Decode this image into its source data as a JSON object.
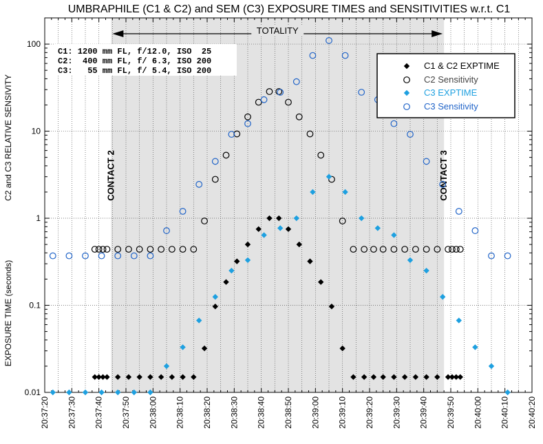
{
  "chart_data": {
    "type": "scatter",
    "title": "UMBRAPHILE (C1 & C2) and SEM (C3) EXPOSURE TIMES and SENSITIVITIES w.r.t. C1",
    "ylabel_upper": "C2  and C3 RELATIVE SENSIVITY",
    "ylabel_lower": "EXPOSURE TIME (seconds)",
    "y_scale": "log",
    "ylim": [
      0.01,
      200
    ],
    "y_ticks": [
      {
        "value": 0.01,
        "label": "0.01"
      },
      {
        "value": 0.1,
        "label": "0.1"
      },
      {
        "value": 1,
        "label": "1"
      },
      {
        "value": 10,
        "label": "10"
      },
      {
        "value": 100,
        "label": "100"
      }
    ],
    "xlim_seconds": [
      0,
      180
    ],
    "x_ticks": [
      {
        "t": 0,
        "label": "20:37:20"
      },
      {
        "t": 10,
        "label": "20:37:30"
      },
      {
        "t": 20,
        "label": "20:37:40"
      },
      {
        "t": 30,
        "label": "20:37:50"
      },
      {
        "t": 40,
        "label": "20:38:00"
      },
      {
        "t": 50,
        "label": "20:38:10"
      },
      {
        "t": 60,
        "label": "20:38:20"
      },
      {
        "t": 70,
        "label": "20:38:30"
      },
      {
        "t": 80,
        "label": "20:38:40"
      },
      {
        "t": 90,
        "label": "20:38:50"
      },
      {
        "t": 100,
        "label": "20:39:00"
      },
      {
        "t": 110,
        "label": "20:39:10"
      },
      {
        "t": 120,
        "label": "20:39:20"
      },
      {
        "t": 130,
        "label": "20:39:30"
      },
      {
        "t": 140,
        "label": "20:39:40"
      },
      {
        "t": 150,
        "label": "20:39:50"
      },
      {
        "t": 160,
        "label": "20:40:00"
      },
      {
        "t": 170,
        "label": "20:40:10"
      },
      {
        "t": 180,
        "label": "20:40:20"
      }
    ],
    "grid": true,
    "totality": {
      "start": 24.5,
      "end": 147.5,
      "label": "TOTALITY"
    },
    "annotations": [
      {
        "text": "CONTACT 2",
        "t": 24.5
      },
      {
        "text": "CONTACT 3",
        "t": 147.5
      }
    ],
    "camera_info": [
      "C1: 1200 mm FL, f/12.0, ISO  25",
      "C2:  400 mm FL, f/ 6.3, ISO 200",
      "C3:   55 mm FL, f/ 5.4, ISO 200"
    ],
    "legend_position": "top-right",
    "series": [
      {
        "name": "C1 & C2 EXPTIME",
        "marker": "diamond-filled",
        "color": "#000000",
        "t": [
          18.5,
          20,
          21.5,
          23,
          27,
          31,
          35,
          39,
          43,
          47,
          51,
          55,
          59,
          63,
          67,
          71,
          75,
          79,
          83,
          86.5,
          90,
          94,
          98,
          102,
          106,
          110,
          114,
          118,
          121.5,
          125,
          129,
          133,
          137,
          141,
          145,
          149,
          150.5,
          152,
          153.5
        ],
        "values": [
          0.015,
          0.015,
          0.015,
          0.015,
          0.015,
          0.015,
          0.015,
          0.015,
          0.015,
          0.015,
          0.015,
          0.015,
          0.032,
          0.097,
          0.185,
          0.32,
          0.5,
          0.75,
          1.0,
          1.0,
          0.75,
          0.5,
          0.32,
          0.185,
          0.097,
          0.032,
          0.015,
          0.015,
          0.015,
          0.015,
          0.015,
          0.015,
          0.015,
          0.015,
          0.015,
          0.015,
          0.015,
          0.015,
          0.015
        ]
      },
      {
        "name": "C2 Sensitivity",
        "marker": "circle-open",
        "color": "#000000",
        "t": [
          18.5,
          20,
          21.5,
          23,
          27,
          31,
          35,
          39,
          43,
          47,
          51,
          55,
          59,
          63,
          67,
          71,
          75,
          79,
          83,
          86.5,
          90,
          94,
          98,
          102,
          106,
          110,
          114,
          118,
          121.5,
          125,
          129,
          133,
          137,
          141,
          145,
          149,
          150.5,
          152,
          153.5
        ],
        "values": [
          0.44,
          0.44,
          0.44,
          0.44,
          0.44,
          0.44,
          0.44,
          0.44,
          0.44,
          0.44,
          0.44,
          0.44,
          0.93,
          2.8,
          5.3,
          9.3,
          14.6,
          21.5,
          28.5,
          28.5,
          21.5,
          14.6,
          9.3,
          5.3,
          2.8,
          0.93,
          0.44,
          0.44,
          0.44,
          0.44,
          0.44,
          0.44,
          0.44,
          0.44,
          0.44,
          0.44,
          0.44,
          0.44,
          0.44
        ]
      },
      {
        "name": "C3 EXPTIME",
        "marker": "diamond-filled",
        "color": "#1ea0e0",
        "t": [
          3,
          9,
          15,
          21,
          27,
          33,
          39,
          45,
          51,
          57,
          63,
          69,
          75,
          81,
          87,
          93,
          99,
          105,
          111,
          117,
          123,
          129,
          135,
          141,
          147,
          153,
          159,
          165,
          171
        ],
        "values": [
          0.01,
          0.01,
          0.01,
          0.01,
          0.01,
          0.01,
          0.01,
          0.02,
          0.033,
          0.067,
          0.125,
          0.25,
          0.33,
          0.64,
          0.77,
          1.0,
          2.0,
          3.0,
          2.0,
          1.0,
          0.77,
          0.64,
          0.33,
          0.25,
          0.125,
          0.067,
          0.033,
          0.02,
          0.01
        ]
      },
      {
        "name": "C3 Sensitivity",
        "marker": "circle-open",
        "color": "#1f63c8",
        "t": [
          3,
          9,
          15,
          21,
          27,
          33,
          39,
          45,
          51,
          57,
          63,
          69,
          75,
          81,
          87,
          93,
          99,
          105,
          111,
          117,
          123,
          129,
          135,
          141,
          147,
          153,
          159,
          165,
          171
        ],
        "values": [
          0.37,
          0.37,
          0.37,
          0.37,
          0.37,
          0.37,
          0.37,
          0.72,
          1.2,
          2.45,
          4.5,
          9.2,
          12.2,
          23,
          28,
          37,
          74,
          110,
          74,
          28,
          23,
          12.2,
          9.2,
          4.5,
          2.45,
          1.2,
          0.72,
          0.37,
          0.37
        ]
      }
    ]
  }
}
